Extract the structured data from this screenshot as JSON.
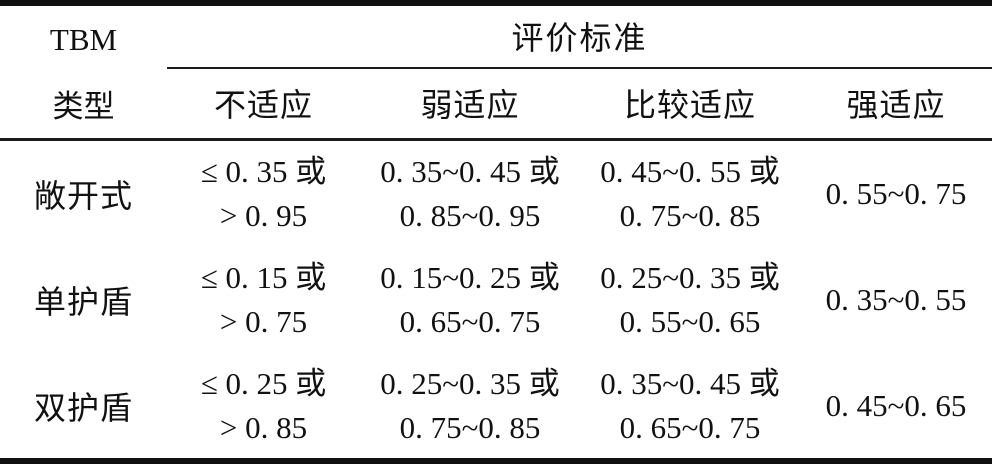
{
  "table": {
    "type_header": {
      "line1": "TBM",
      "line2": "类型"
    },
    "criteria_title": "评价标准",
    "levels": [
      "不适应",
      "弱适应",
      "比较适应",
      "强适应"
    ],
    "rows": [
      {
        "type": "敞开式",
        "cells": [
          {
            "line1": "≤ 0. 35 或",
            "line2": "> 0. 95"
          },
          {
            "line1": "0. 35~0. 45 或",
            "line2": "0. 85~0. 95"
          },
          {
            "line1": "0. 45~0. 55 或",
            "line2": "0. 75~0. 85"
          },
          {
            "line1": "0. 55~0. 75"
          }
        ]
      },
      {
        "type": "单护盾",
        "cells": [
          {
            "line1": "≤ 0. 15 或",
            "line2": "> 0. 75"
          },
          {
            "line1": "0. 15~0. 25 或",
            "line2": "0. 65~0. 75"
          },
          {
            "line1": "0. 25~0. 35 或",
            "line2": "0. 55~0. 65"
          },
          {
            "line1": "0. 35~0. 55"
          }
        ]
      },
      {
        "type": "双护盾",
        "cells": [
          {
            "line1": "≤ 0. 25 或",
            "line2": "> 0. 85"
          },
          {
            "line1": "0. 25~0. 35 或",
            "line2": "0. 75~0. 85"
          },
          {
            "line1": "0. 35~0. 45 或",
            "line2": "0. 65~0. 75"
          },
          {
            "line1": "0. 45~0. 65"
          }
        ]
      }
    ],
    "colors": {
      "text": "#111111",
      "rule": "#1a1a1a",
      "background": "#ffffff"
    }
  }
}
